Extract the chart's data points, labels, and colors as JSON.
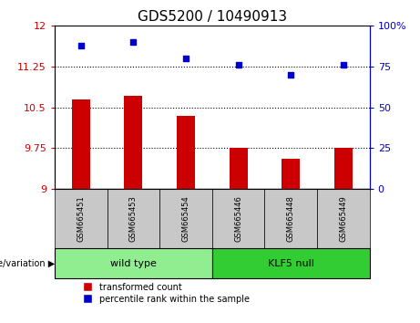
{
  "title": "GDS5200 / 10490913",
  "samples": [
    "GSM665451",
    "GSM665453",
    "GSM665454",
    "GSM665446",
    "GSM665448",
    "GSM665449"
  ],
  "bar_values": [
    10.65,
    10.72,
    10.35,
    9.75,
    9.55,
    9.75
  ],
  "dot_values": [
    88,
    90,
    80,
    76,
    70,
    76
  ],
  "ymin": 9,
  "ymax": 12,
  "y_ticks": [
    9,
    9.75,
    10.5,
    11.25,
    12
  ],
  "y2min": 0,
  "y2max": 100,
  "y2_ticks": [
    0,
    25,
    50,
    75,
    100
  ],
  "y2_tick_labels": [
    "0",
    "25",
    "50",
    "75",
    "100%"
  ],
  "bar_color": "#cc0000",
  "dot_color": "#0000cc",
  "wild_type_label": "wild type",
  "klf5_null_label": "KLF5 null",
  "wild_type_color": "#90ee90",
  "klf5_null_color": "#32cd32",
  "genotype_label": "genotype/variation",
  "legend_bar": "transformed count",
  "legend_dot": "percentile rank within the sample",
  "title_fontsize": 11,
  "tick_fontsize": 8,
  "label_fontsize": 8
}
